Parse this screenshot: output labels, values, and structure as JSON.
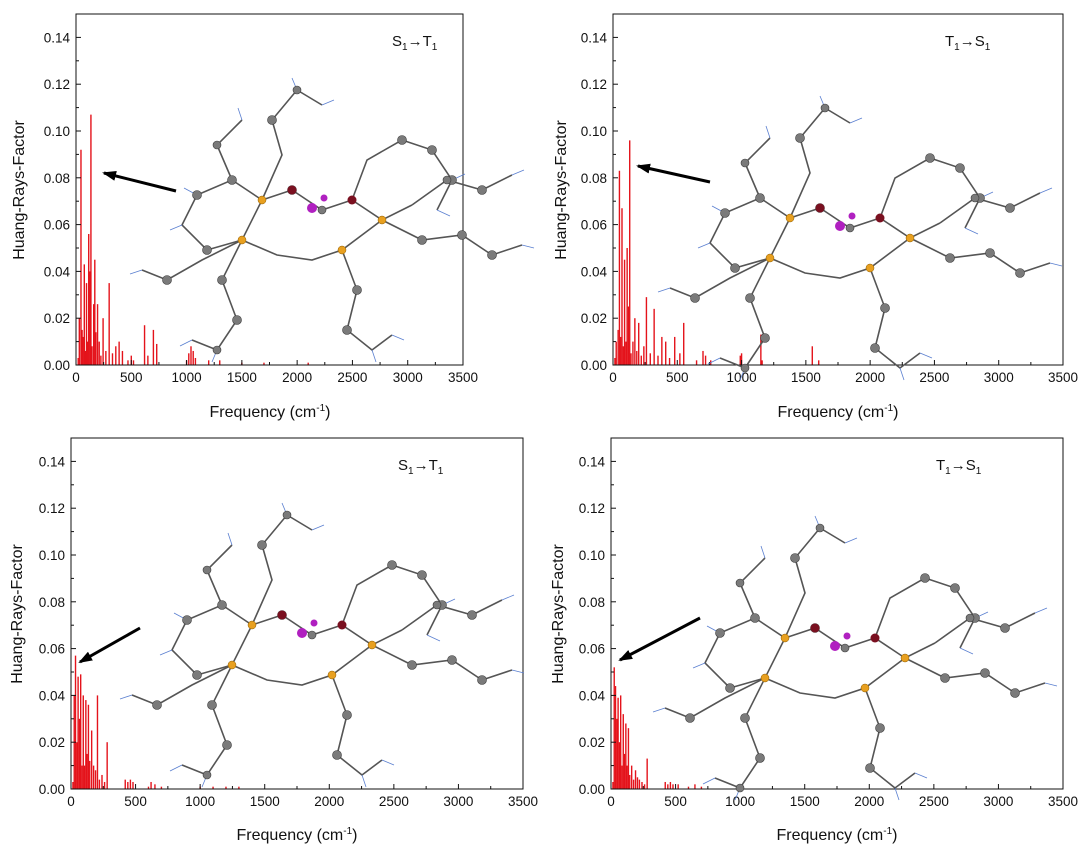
{
  "panels": [
    {
      "annotation": {
        "from": "S",
        "from_sub": "1",
        "arrow": "→",
        "to": "T",
        "to_sub": "1"
      },
      "xlabel": "Frequency (cm",
      "xlabel_sup": "-1",
      "xlabel_close": ")",
      "ylabel": "Huang-Rays-Factor"
    },
    {
      "annotation": {
        "from": "T",
        "from_sub": "1",
        "arrow": "→",
        "to": "S",
        "to_sub": "1"
      },
      "xlabel": "Frequency (cm",
      "xlabel_sup": "-1",
      "xlabel_close": ")",
      "ylabel": "Huang-Rays-Factor"
    },
    {
      "annotation": {
        "from": "S",
        "from_sub": "1",
        "arrow": "→",
        "to": "T",
        "to_sub": "1"
      },
      "xlabel": "Frequency (cm",
      "xlabel_sup": "-1",
      "xlabel_close": ")",
      "ylabel": "Huang-Rays-Factor"
    },
    {
      "annotation": {
        "from": "T",
        "from_sub": "1",
        "arrow": "→",
        "to": "S",
        "to_sub": "1"
      },
      "xlabel": "Frequency (cm",
      "xlabel_sup": "-1",
      "xlabel_close": ")",
      "ylabel": "Huang-Rays-Factor"
    }
  ],
  "colors": {
    "bars": "#e4131b",
    "axis": "#111111",
    "arrow": "#000000"
  },
  "chart_data": [
    {
      "type": "bar",
      "title": "",
      "annotation": "S1→T1",
      "xlabel": "Frequency (cm-1)",
      "ylabel": "Huang-Rays-Factor",
      "xlim": [
        0,
        3500
      ],
      "ylim": [
        0,
        0.15
      ],
      "xticks": [
        "0",
        "500",
        "1000",
        "1500",
        "2000",
        "2500",
        "3000",
        "3500"
      ],
      "yticks": [
        "0.00",
        "0.02",
        "0.04",
        "0.06",
        "0.08",
        "0.10",
        "0.12",
        "0.14"
      ],
      "x": [
        20,
        30,
        45,
        55,
        65,
        75,
        85,
        95,
        105,
        115,
        125,
        135,
        145,
        160,
        170,
        180,
        195,
        210,
        225,
        245,
        270,
        300,
        330,
        360,
        390,
        420,
        470,
        500,
        520,
        620,
        650,
        700,
        730,
        1000,
        1020,
        1040,
        1060,
        1080,
        1200,
        1300,
        1500,
        1700,
        2100
      ],
      "y": [
        0.003,
        0.02,
        0.092,
        0.015,
        0.012,
        0.043,
        0.006,
        0.035,
        0.01,
        0.056,
        0.04,
        0.107,
        0.008,
        0.026,
        0.045,
        0.014,
        0.026,
        0.01,
        0.004,
        0.02,
        0.006,
        0.035,
        0.005,
        0.008,
        0.01,
        0.006,
        0.002,
        0.004,
        0.002,
        0.017,
        0.004,
        0.015,
        0.009,
        0.002,
        0.005,
        0.008,
        0.006,
        0.003,
        0.002,
        0.002,
        0.001,
        0.001,
        0.001
      ]
    },
    {
      "type": "bar",
      "title": "",
      "annotation": "T1→S1",
      "xlabel": "Frequency (cm-1)",
      "ylabel": "Huang-Rays-Factor",
      "xlim": [
        0,
        3500
      ],
      "ylim": [
        0,
        0.15
      ],
      "xticks": [
        "0",
        "500",
        "1000",
        "1500",
        "2000",
        "2500",
        "3000",
        "3500"
      ],
      "yticks": [
        "0.00",
        "0.02",
        "0.04",
        "0.06",
        "0.08",
        "0.10",
        "0.12",
        "0.14"
      ],
      "x": [
        15,
        25,
        40,
        50,
        60,
        70,
        80,
        90,
        100,
        110,
        120,
        130,
        140,
        155,
        170,
        185,
        200,
        220,
        240,
        260,
        290,
        320,
        350,
        380,
        410,
        440,
        480,
        520,
        550,
        650,
        700,
        720,
        760,
        990,
        1000,
        1150,
        1160,
        1550,
        1600
      ],
      "y": [
        0.003,
        0.01,
        0.015,
        0.083,
        0.012,
        0.067,
        0.008,
        0.045,
        0.01,
        0.05,
        0.025,
        0.096,
        0.005,
        0.01,
        0.02,
        0.006,
        0.018,
        0.004,
        0.008,
        0.029,
        0.005,
        0.024,
        0.004,
        0.012,
        0.01,
        0.003,
        0.012,
        0.005,
        0.018,
        0.002,
        0.006,
        0.004,
        0.002,
        0.004,
        0.005,
        0.013,
        0.002,
        0.008,
        0.002
      ]
    },
    {
      "type": "bar",
      "title": "",
      "annotation": "S1→T1",
      "xlabel": "Frequency (cm-1)",
      "ylabel": "Huang-Rays-Factor",
      "xlim": [
        0,
        3500
      ],
      "ylim": [
        0,
        0.15
      ],
      "xticks": [
        "0",
        "500",
        "1000",
        "1500",
        "2000",
        "2500",
        "3000",
        "3500"
      ],
      "yticks": [
        "0.00",
        "0.02",
        "0.04",
        "0.06",
        "0.08",
        "0.10",
        "0.12",
        "0.14"
      ],
      "x": [
        15,
        25,
        35,
        45,
        55,
        65,
        75,
        85,
        95,
        105,
        115,
        125,
        135,
        145,
        160,
        175,
        190,
        205,
        220,
        240,
        260,
        280,
        420,
        440,
        460,
        480,
        600,
        620,
        650,
        700,
        1000,
        1100,
        1200,
        1300
      ],
      "y": [
        0.003,
        0.04,
        0.057,
        0.02,
        0.048,
        0.03,
        0.049,
        0.01,
        0.04,
        0.01,
        0.038,
        0.015,
        0.036,
        0.012,
        0.025,
        0.01,
        0.008,
        0.04,
        0.004,
        0.006,
        0.003,
        0.02,
        0.004,
        0.003,
        0.004,
        0.003,
        0.001,
        0.003,
        0.002,
        0.001,
        0.001,
        0.001,
        0.001,
        0.001
      ]
    },
    {
      "type": "bar",
      "title": "",
      "annotation": "T1→S1",
      "xlabel": "Frequency (cm-1)",
      "ylabel": "Huang-Rays-Factor",
      "xlim": [
        0,
        3500
      ],
      "ylim": [
        0,
        0.15
      ],
      "xticks": [
        "0",
        "500",
        "1000",
        "1500",
        "2000",
        "2500",
        "3000",
        "3500"
      ],
      "yticks": [
        "0.00",
        "0.02",
        "0.04",
        "0.06",
        "0.08",
        "0.10",
        "0.12",
        "0.14"
      ],
      "x": [
        15,
        25,
        35,
        45,
        55,
        65,
        75,
        85,
        95,
        105,
        115,
        125,
        135,
        145,
        160,
        175,
        190,
        205,
        220,
        240,
        260,
        280,
        420,
        440,
        460,
        480,
        520,
        600,
        650,
        700
      ],
      "y": [
        0.003,
        0.052,
        0.044,
        0.03,
        0.039,
        0.02,
        0.04,
        0.01,
        0.032,
        0.015,
        0.028,
        0.01,
        0.026,
        0.006,
        0.01,
        0.004,
        0.008,
        0.005,
        0.004,
        0.003,
        0.002,
        0.013,
        0.003,
        0.002,
        0.003,
        0.002,
        0.002,
        0.001,
        0.002,
        0.001
      ]
    }
  ]
}
